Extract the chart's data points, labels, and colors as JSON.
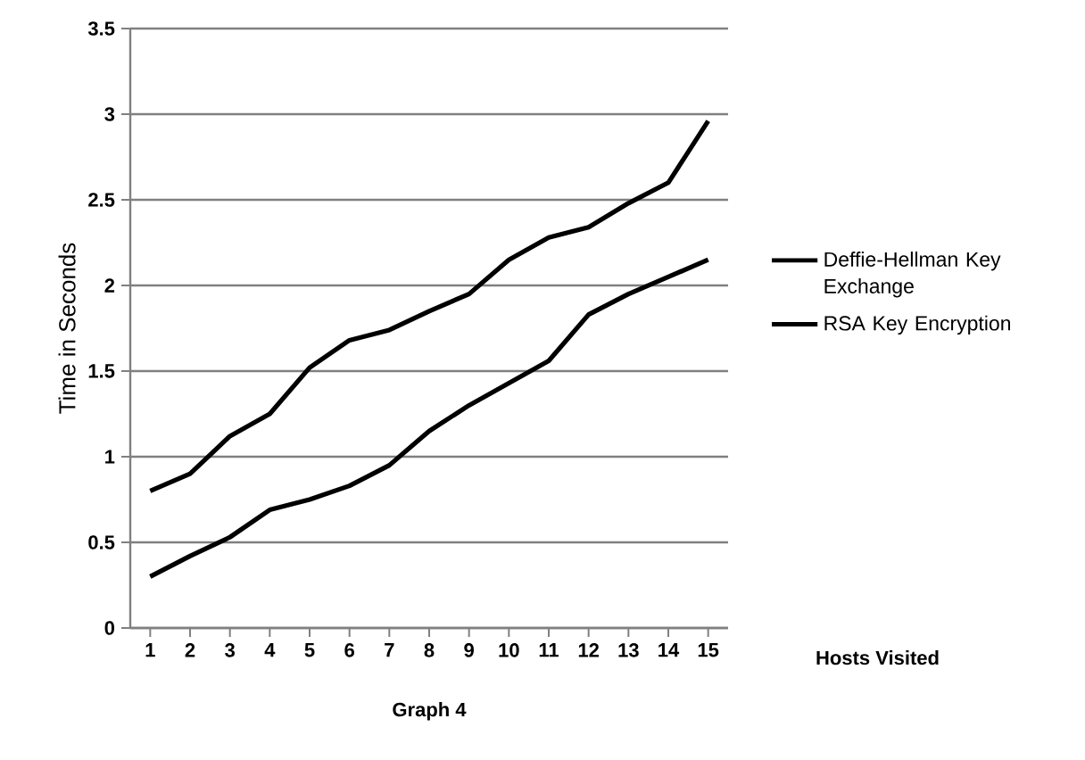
{
  "chart_data": {
    "type": "line",
    "title": "Graph 4",
    "xlabel": "Hosts Visited",
    "ylabel": "Time in Seconds",
    "categories": [
      "1",
      "2",
      "3",
      "4",
      "5",
      "6",
      "7",
      "8",
      "9",
      "10",
      "11",
      "12",
      "13",
      "14",
      "15"
    ],
    "series": [
      {
        "name": "Deffie-Hellman Key Exchange",
        "color": "#000000",
        "values": [
          0.8,
          0.9,
          1.12,
          1.25,
          1.52,
          1.68,
          1.74,
          1.85,
          1.95,
          2.15,
          2.28,
          2.34,
          2.48,
          2.6,
          2.96
        ]
      },
      {
        "name": "RSA Key Encryption",
        "color": "#000000",
        "values": [
          0.3,
          0.42,
          0.53,
          0.69,
          0.75,
          0.83,
          0.95,
          1.15,
          1.3,
          1.43,
          1.56,
          1.83,
          1.95,
          2.05,
          2.15
        ]
      }
    ],
    "ylim": [
      0,
      3.5
    ],
    "yticks": [
      0,
      0.5,
      1,
      1.5,
      2,
      2.5,
      3,
      3.5
    ],
    "grid": "y",
    "legend": "right",
    "marker": "none",
    "line_style": "solid"
  }
}
